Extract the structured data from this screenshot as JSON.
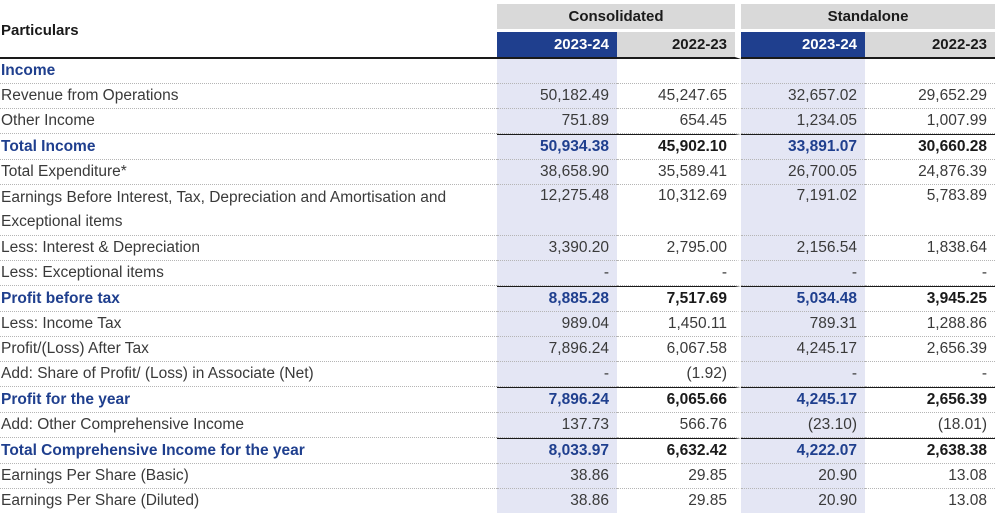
{
  "header": {
    "particulars": "Particulars",
    "groups": [
      "Consolidated",
      "Standalone"
    ],
    "years": [
      "2023-24",
      "2022-23",
      "2023-24",
      "2022-23"
    ]
  },
  "rows": [
    {
      "label": "Income",
      "values": [
        "",
        "",
        "",
        ""
      ]
    },
    {
      "label": "Revenue from Operations",
      "values": [
        "50,182.49",
        "45,247.65",
        "32,657.02",
        "29,652.29"
      ]
    },
    {
      "label": "Other Income",
      "values": [
        "751.89",
        "654.45",
        "1,234.05",
        "1,007.99"
      ]
    },
    {
      "label": "Total Income",
      "values": [
        "50,934.38",
        "45,902.10",
        "33,891.07",
        "30,660.28"
      ]
    },
    {
      "label": "Total Expenditure*",
      "values": [
        "38,658.90",
        "35,589.41",
        "26,700.05",
        "24,876.39"
      ]
    },
    {
      "label": "Earnings Before Interest, Tax, Depreciation and Amortisation and Exceptional items",
      "values": [
        "12,275.48",
        "10,312.69",
        "7,191.02",
        "5,783.89"
      ]
    },
    {
      "label": "Less: Interest & Depreciation",
      "values": [
        "3,390.20",
        "2,795.00",
        "2,156.54",
        "1,838.64"
      ]
    },
    {
      "label": "Less: Exceptional items",
      "values": [
        "-",
        "-",
        "-",
        "-"
      ]
    },
    {
      "label": "Profit before tax",
      "values": [
        "8,885.28",
        "7,517.69",
        "5,034.48",
        "3,945.25"
      ]
    },
    {
      "label": "Less: Income Tax",
      "values": [
        "989.04",
        "1,450.11",
        "789.31",
        "1,288.86"
      ]
    },
    {
      "label": "Profit/(Loss) After Tax",
      "values": [
        "7,896.24",
        "6,067.58",
        "4,245.17",
        "2,656.39"
      ]
    },
    {
      "label": "Add: Share of Profit/ (Loss) in Associate (Net)",
      "values": [
        "-",
        "(1.92)",
        "-",
        "-"
      ]
    },
    {
      "label": "Profit for the year",
      "values": [
        "7,896.24",
        "6,065.66",
        "4,245.17",
        "2,656.39"
      ]
    },
    {
      "label": "Add: Other Comprehensive Income",
      "values": [
        "137.73",
        "566.76",
        "(23.10)",
        "(18.01)"
      ]
    },
    {
      "label": "Total Comprehensive Income for the year",
      "values": [
        "8,033.97",
        "6,632.42",
        "4,222.07",
        "2,638.38"
      ]
    },
    {
      "label": "Earnings Per Share (Basic)",
      "values": [
        "38.86",
        "29.85",
        "20.90",
        "13.08"
      ]
    },
    {
      "label": "Earnings Per Share (Diluted)",
      "values": [
        "38.86",
        "29.85",
        "20.90",
        "13.08"
      ]
    }
  ]
}
